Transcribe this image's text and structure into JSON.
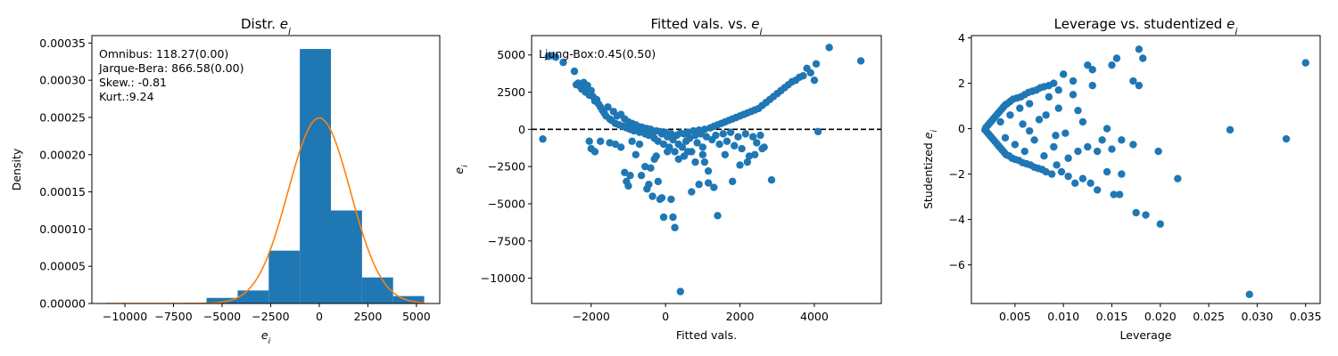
{
  "chart_data": [
    {
      "type": "bar",
      "title": "Distr. ",
      "title_math": "e",
      "title_sub": "i",
      "xlabel": "",
      "xlabel_math": "e",
      "xlabel_sub": "i",
      "ylabel": "Density",
      "xlim": [
        -11700,
        6200
      ],
      "ylim": [
        0,
        0.00036
      ],
      "xticks": [
        -10000,
        -7500,
        -5000,
        -2500,
        0,
        2500,
        5000
      ],
      "xtick_labels": [
        "−10000",
        "−7500",
        "−5000",
        "−2500",
        "0",
        "2500",
        "5000"
      ],
      "yticks": [
        0,
        5e-05,
        0.0001,
        0.00015,
        0.0002,
        0.00025,
        0.0003,
        0.00035
      ],
      "ytick_labels": [
        "0.00000",
        "0.00005",
        "0.00010",
        "0.00015",
        "0.00020",
        "0.00025",
        "0.00030",
        "0.00035"
      ],
      "bins": [
        {
          "x0": -5800,
          "x1": -4200,
          "density": 7.5e-06
        },
        {
          "x0": -4200,
          "x1": -2600,
          "density": 1.75e-05
        },
        {
          "x0": -2600,
          "x1": -1000,
          "density": 7.1e-05
        },
        {
          "x0": -1000,
          "x1": 600,
          "density": 0.000342
        },
        {
          "x0": 600,
          "x1": 2200,
          "density": 0.000125
        },
        {
          "x0": 2200,
          "x1": 3800,
          "density": 3.5e-05
        },
        {
          "x0": 3800,
          "x1": 5400,
          "density": 1e-05
        }
      ],
      "normal_curve": {
        "mean": 0,
        "std": 1600,
        "x_range": [
          -11000,
          5400
        ]
      },
      "bar_color": "#1f77b4",
      "curve_color": "#ff7f0e",
      "stats": [
        "Omnibus: 118.27(0.00)",
        "Jarque-Bera: 866.58(0.00)",
        "Skew.: -0.81",
        "Kurt.:9.24"
      ]
    },
    {
      "type": "scatter",
      "title": "Fitted vals. vs. ",
      "title_math": "e",
      "title_sub": "i",
      "xlabel": "Fitted vals.",
      "ylabel": "",
      "ylabel_math": "e",
      "ylabel_sub": "i",
      "xlim": [
        -3600,
        5800
      ],
      "ylim": [
        -11700,
        6300
      ],
      "xticks": [
        -2000,
        0,
        2000,
        4000
      ],
      "xtick_labels": [
        "−2000",
        "0",
        "2000",
        "4000"
      ],
      "yticks": [
        -10000,
        -7500,
        -5000,
        -2500,
        0,
        2500,
        5000
      ],
      "ytick_labels": [
        "−10000",
        "−7500",
        "−5000",
        "−2500",
        "0",
        "2500",
        "5000"
      ],
      "reference_line": {
        "y": 0,
        "style": "dashed",
        "color": "#000000"
      },
      "point_color": "#1f77b4",
      "stats": [
        "Ljung-Box:0.45(0.50)"
      ],
      "points": [
        [
          -3300,
          -650
        ],
        [
          -3150,
          4900
        ],
        [
          -3050,
          4950
        ],
        [
          -2950,
          4850
        ],
        [
          -2750,
          4500
        ],
        [
          -2450,
          3900
        ],
        [
          -2400,
          3000
        ],
        [
          -2350,
          3100
        ],
        [
          -2300,
          2900
        ],
        [
          -2250,
          2700
        ],
        [
          -2200,
          3150
        ],
        [
          -2150,
          2500
        ],
        [
          -2100,
          2950
        ],
        [
          -2050,
          2300
        ],
        [
          -2000,
          2600
        ],
        [
          -1950,
          2200
        ],
        [
          -1900,
          1900
        ],
        [
          -1850,
          2000
        ],
        [
          -1800,
          1700
        ],
        [
          -1750,
          1500
        ],
        [
          -1700,
          1300
        ],
        [
          -1650,
          1100
        ],
        [
          -1600,
          900
        ],
        [
          -1550,
          1500
        ],
        [
          -1500,
          700
        ],
        [
          -1450,
          600
        ],
        [
          -1400,
          1200
        ],
        [
          -1350,
          400
        ],
        [
          -1300,
          900
        ],
        [
          -1250,
          300
        ],
        [
          -1200,
          1000
        ],
        [
          -1150,
          200
        ],
        [
          -1100,
          700
        ],
        [
          -1050,
          100
        ],
        [
          -1000,
          500
        ],
        [
          -950,
          0
        ],
        [
          -900,
          400
        ],
        [
          -850,
          -100
        ],
        [
          -800,
          300
        ],
        [
          -750,
          200
        ],
        [
          -700,
          -200
        ],
        [
          -650,
          150
        ],
        [
          -600,
          100
        ],
        [
          -550,
          -300
        ],
        [
          -500,
          50
        ],
        [
          -450,
          -400
        ],
        [
          -400,
          0
        ],
        [
          -350,
          -200
        ],
        [
          -300,
          -600
        ],
        [
          -250,
          -100
        ],
        [
          -200,
          -800
        ],
        [
          -150,
          -150
        ],
        [
          -100,
          -300
        ],
        [
          -50,
          -1000
        ],
        [
          0,
          -200
        ],
        [
          50,
          -500
        ],
        [
          100,
          -1200
        ],
        [
          150,
          -300
        ],
        [
          200,
          -700
        ],
        [
          250,
          -1500
        ],
        [
          300,
          -400
        ],
        [
          350,
          -1000
        ],
        [
          400,
          -250
        ],
        [
          450,
          -1200
        ],
        [
          500,
          -300
        ],
        [
          550,
          -800
        ],
        [
          600,
          -200
        ],
        [
          650,
          -600
        ],
        [
          700,
          -1500
        ],
        [
          750,
          -100
        ],
        [
          800,
          -400
        ],
        [
          850,
          -900
        ],
        [
          900,
          -50
        ],
        [
          950,
          -300
        ],
        [
          1000,
          -1200
        ],
        [
          1050,
          0
        ],
        [
          1100,
          -500
        ],
        [
          1150,
          -2800
        ],
        [
          1200,
          100
        ],
        [
          1250,
          -700
        ],
        [
          1300,
          200
        ],
        [
          1350,
          -400
        ],
        [
          1400,
          300
        ],
        [
          1450,
          -1000
        ],
        [
          1500,
          400
        ],
        [
          1550,
          -300
        ],
        [
          1600,
          500
        ],
        [
          1650,
          -800
        ],
        [
          1700,
          600
        ],
        [
          1750,
          -200
        ],
        [
          1800,
          700
        ],
        [
          1850,
          -1100
        ],
        [
          1900,
          800
        ],
        [
          1950,
          -500
        ],
        [
          2000,
          900
        ],
        [
          2050,
          -1300
        ],
        [
          2100,
          1000
        ],
        [
          2150,
          -300
        ],
        [
          2200,
          1100
        ],
        [
          2250,
          -1800
        ],
        [
          2300,
          1200
        ],
        [
          2350,
          -500
        ],
        [
          2400,
          1300
        ],
        [
          2450,
          -900
        ],
        [
          2500,
          1400
        ],
        [
          2550,
          -400
        ],
        [
          2600,
          1600
        ],
        [
          2650,
          -1200
        ],
        [
          2700,
          1800
        ],
        [
          2800,
          2000
        ],
        [
          2850,
          -3400
        ],
        [
          2900,
          2200
        ],
        [
          3000,
          2400
        ],
        [
          3100,
          2600
        ],
        [
          3200,
          2800
        ],
        [
          3300,
          3000
        ],
        [
          3400,
          3200
        ],
        [
          3500,
          3300
        ],
        [
          3600,
          3500
        ],
        [
          3700,
          3600
        ],
        [
          3800,
          4100
        ],
        [
          3900,
          3800
        ],
        [
          4000,
          3300
        ],
        [
          4050,
          4400
        ],
        [
          4100,
          -150
        ],
        [
          4400,
          5500
        ],
        [
          5250,
          4600
        ],
        [
          -2050,
          -800
        ],
        [
          -2000,
          -1300
        ],
        [
          -1900,
          -1500
        ],
        [
          -1750,
          -800
        ],
        [
          -1500,
          -900
        ],
        [
          -1350,
          -1000
        ],
        [
          -1200,
          -1200
        ],
        [
          -1100,
          -2900
        ],
        [
          -1050,
          -3500
        ],
        [
          -1000,
          -3800
        ],
        [
          -950,
          -3100
        ],
        [
          -900,
          -800
        ],
        [
          -800,
          -1700
        ],
        [
          -700,
          -1000
        ],
        [
          -650,
          -3100
        ],
        [
          -550,
          -2500
        ],
        [
          -500,
          -4000
        ],
        [
          -450,
          -3700
        ],
        [
          -400,
          -2600
        ],
        [
          -350,
          -4500
        ],
        [
          -300,
          -2000
        ],
        [
          -250,
          -1800
        ],
        [
          -200,
          -3500
        ],
        [
          -150,
          -4700
        ],
        [
          -100,
          -4600
        ],
        [
          -50,
          -5900
        ],
        [
          50,
          -1500
        ],
        [
          150,
          -4700
        ],
        [
          200,
          -5900
        ],
        [
          250,
          -6600
        ],
        [
          350,
          -2000
        ],
        [
          400,
          -10900
        ],
        [
          500,
          -1800
        ],
        [
          600,
          -1500
        ],
        [
          700,
          -4200
        ],
        [
          800,
          -2200
        ],
        [
          900,
          -3700
        ],
        [
          1000,
          -1700
        ],
        [
          1050,
          -2200
        ],
        [
          1150,
          -3600
        ],
        [
          1300,
          -3900
        ],
        [
          1400,
          -5800
        ],
        [
          1600,
          -1700
        ],
        [
          1800,
          -3500
        ],
        [
          2000,
          -2400
        ],
        [
          2200,
          -2200
        ],
        [
          2400,
          -1700
        ],
        [
          2600,
          -1300
        ]
      ]
    },
    {
      "type": "scatter",
      "title": "Leverage vs. studentized ",
      "title_math": "e",
      "title_sub": "i",
      "xlabel": "Leverage",
      "ylabel": "Studentized ",
      "ylabel_math": "e",
      "ylabel_sub": "i",
      "xlim": [
        0.0005,
        0.0365
      ],
      "ylim": [
        -7.7,
        4.1
      ],
      "xticks": [
        0.005,
        0.01,
        0.015,
        0.02,
        0.025,
        0.03,
        0.035
      ],
      "xtick_labels": [
        "0.005",
        "0.010",
        "0.015",
        "0.020",
        "0.025",
        "0.030",
        "0.035"
      ],
      "yticks": [
        -6,
        -4,
        -2,
        0,
        2,
        4
      ],
      "ytick_labels": [
        "−6",
        "−4",
        "−2",
        "0",
        "2",
        "4"
      ],
      "point_color": "#1f77b4",
      "points": [
        [
          0.0019,
          -0.05
        ],
        [
          0.002,
          0.05
        ],
        [
          0.0021,
          -0.15
        ],
        [
          0.0022,
          0.15
        ],
        [
          0.0023,
          -0.25
        ],
        [
          0.0024,
          0.25
        ],
        [
          0.0025,
          -0.35
        ],
        [
          0.0026,
          0.35
        ],
        [
          0.0027,
          -0.45
        ],
        [
          0.0028,
          0.45
        ],
        [
          0.0029,
          -0.55
        ],
        [
          0.003,
          0.55
        ],
        [
          0.0031,
          -0.65
        ],
        [
          0.0032,
          0.65
        ],
        [
          0.0033,
          -0.75
        ],
        [
          0.0034,
          0.75
        ],
        [
          0.0035,
          -0.85
        ],
        [
          0.0036,
          0.85
        ],
        [
          0.0037,
          -0.95
        ],
        [
          0.0038,
          0.95
        ],
        [
          0.0039,
          -1.05
        ],
        [
          0.004,
          1.05
        ],
        [
          0.0041,
          -1.15
        ],
        [
          0.0042,
          1.1
        ],
        [
          0.0044,
          -1.2
        ],
        [
          0.0045,
          1.2
        ],
        [
          0.0047,
          -1.3
        ],
        [
          0.0048,
          1.3
        ],
        [
          0.005,
          -1.35
        ],
        [
          0.0052,
          1.35
        ],
        [
          0.0054,
          -1.4
        ],
        [
          0.0056,
          1.4
        ],
        [
          0.0058,
          -1.5
        ],
        [
          0.006,
          1.5
        ],
        [
          0.0062,
          -1.55
        ],
        [
          0.0064,
          1.6
        ],
        [
          0.0066,
          -1.6
        ],
        [
          0.0068,
          1.65
        ],
        [
          0.007,
          -1.7
        ],
        [
          0.0072,
          1.7
        ],
        [
          0.0074,
          -1.75
        ],
        [
          0.0076,
          1.8
        ],
        [
          0.0078,
          -1.8
        ],
        [
          0.008,
          1.85
        ],
        [
          0.0082,
          -1.9
        ],
        [
          0.0085,
          1.9
        ],
        [
          0.0088,
          -2.0
        ],
        [
          0.009,
          2.0
        ],
        [
          0.0093,
          -1.6
        ],
        [
          0.0095,
          1.7
        ],
        [
          0.0098,
          -1.9
        ],
        [
          0.01,
          2.4
        ],
        [
          0.0105,
          -2.1
        ],
        [
          0.011,
          2.1
        ],
        [
          0.0112,
          -2.4
        ],
        [
          0.0115,
          0.8
        ],
        [
          0.012,
          -2.2
        ],
        [
          0.0125,
          2.8
        ],
        [
          0.0128,
          -2.4
        ],
        [
          0.013,
          2.6
        ],
        [
          0.0135,
          -2.7
        ],
        [
          0.014,
          -0.5
        ],
        [
          0.0145,
          -1.9
        ],
        [
          0.015,
          2.8
        ],
        [
          0.0152,
          -2.9
        ],
        [
          0.0155,
          3.1
        ],
        [
          0.0158,
          -2.9
        ],
        [
          0.016,
          -2.0
        ],
        [
          0.0172,
          2.1
        ],
        [
          0.0175,
          -3.7
        ],
        [
          0.0178,
          3.5
        ],
        [
          0.0182,
          3.1
        ],
        [
          0.0185,
          -3.8
        ],
        [
          0.02,
          -4.2
        ],
        [
          0.0218,
          -2.2
        ],
        [
          0.0272,
          -0.05
        ],
        [
          0.0292,
          -7.3
        ],
        [
          0.033,
          -0.45
        ],
        [
          0.035,
          2.9
        ],
        [
          0.0035,
          0.3
        ],
        [
          0.004,
          -0.4
        ],
        [
          0.0045,
          0.6
        ],
        [
          0.005,
          -0.7
        ],
        [
          0.0055,
          0.9
        ],
        [
          0.006,
          -1.0
        ],
        [
          0.0065,
          1.1
        ],
        [
          0.007,
          -0.5
        ],
        [
          0.0075,
          0.4
        ],
        [
          0.008,
          -1.2
        ],
        [
          0.0085,
          1.4
        ],
        [
          0.009,
          -0.8
        ],
        [
          0.0095,
          0.9
        ],
        [
          0.0105,
          -1.3
        ],
        [
          0.011,
          1.5
        ],
        [
          0.0115,
          -1.0
        ],
        [
          0.012,
          0.3
        ],
        [
          0.0125,
          -0.8
        ],
        [
          0.013,
          1.9
        ],
        [
          0.0135,
          -1.0
        ],
        [
          0.0145,
          0.0
        ],
        [
          0.015,
          -0.9
        ],
        [
          0.016,
          -0.5
        ],
        [
          0.0172,
          -0.7
        ],
        [
          0.0178,
          1.9
        ],
        [
          0.0198,
          -1.0
        ],
        [
          0.0102,
          -0.2
        ],
        [
          0.0065,
          -0.1
        ],
        [
          0.0058,
          0.2
        ],
        [
          0.0082,
          0.6
        ],
        [
          0.0092,
          -0.3
        ]
      ]
    }
  ]
}
